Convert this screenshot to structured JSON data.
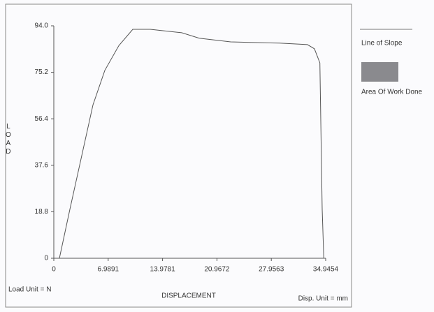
{
  "chart_data": {
    "type": "line",
    "y_label": "LOAD",
    "x_label": "DISPLACEMENT",
    "load_unit": "Load Unit = N",
    "disp_unit": "Disp. Unit = mm",
    "x": [
      0.72,
      2.07,
      5.03,
      6.56,
      8.36,
      10.15,
      12.4,
      16.44,
      18.69,
      22.73,
      29.0,
      32.6,
      33.5,
      34.2,
      34.5,
      34.7
    ],
    "series": [
      {
        "color": "#555555",
        "values": [
          0,
          19.8,
          62,
          76,
          86,
          92.6,
          92.6,
          91.2,
          89,
          87.5,
          87,
          86.4,
          84.7,
          79,
          19.8,
          0
        ]
      }
    ],
    "xlim": [
      0,
      34.9454
    ],
    "xticks": [
      0,
      6.9891,
      13.9781,
      20.9672,
      27.9563,
      34.9454
    ],
    "ylim": [
      0,
      94
    ],
    "yticks": [
      0,
      18.8,
      37.6,
      56.4,
      75.2,
      {
        "value": 94,
        "label": "94.0"
      }
    ],
    "grid": false,
    "legend": [
      {
        "label": "Line of Slope",
        "color": "#777777"
      },
      {
        "label": "Area Of Work Done",
        "color": "#8a8a8e"
      }
    ]
  }
}
